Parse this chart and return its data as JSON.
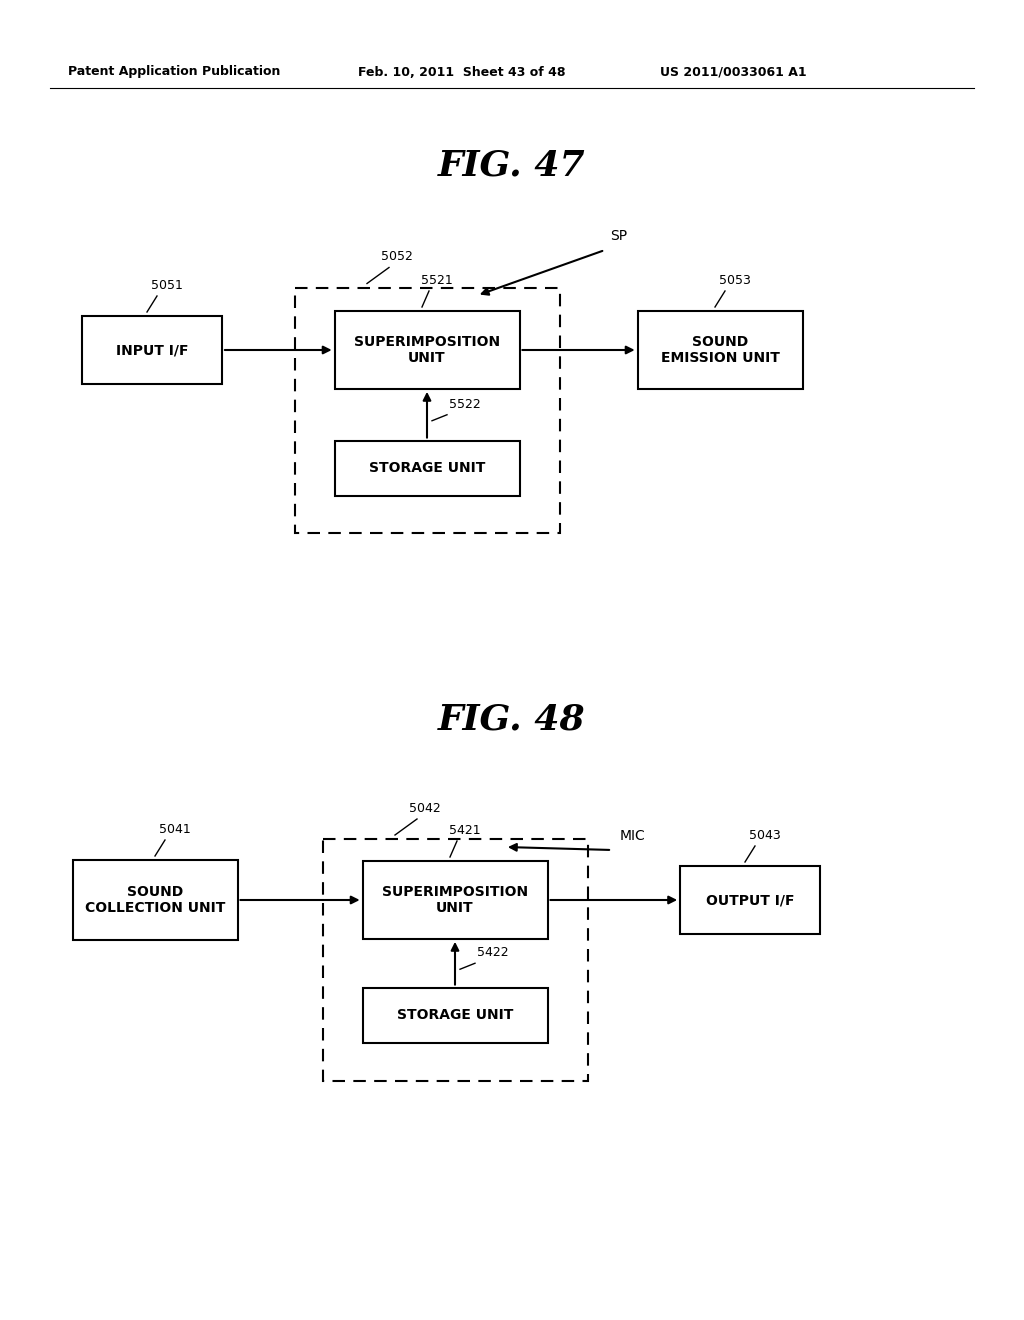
{
  "header_left": "Patent Application Publication",
  "header_mid": "Feb. 10, 2011  Sheet 43 of 48",
  "header_right": "US 2011/0033061 A1",
  "fig47_title": "FIG. 47",
  "fig48_title": "FIG. 48",
  "background": "#ffffff",
  "fig47": {
    "label_5051": "5051",
    "label_5052": "5052",
    "label_5053": "5053",
    "label_5521": "5521",
    "label_5522": "5522",
    "label_sp": "SP",
    "box_input_if": "INPUT I/F",
    "box_superimposition": "SUPERIMPOSITION\nUNIT",
    "box_sound_emission": "SOUND\nEMISSION UNIT",
    "box_storage": "STORAGE UNIT"
  },
  "fig48": {
    "label_5041": "5041",
    "label_5042": "5042",
    "label_5043": "5043",
    "label_5421": "5421",
    "label_5422": "5422",
    "label_mic": "MIC",
    "box_sound_collection": "SOUND\nCOLLECTION UNIT",
    "box_superimposition": "SUPERIMPOSITION\nUNIT",
    "box_output_if": "OUTPUT I/F",
    "box_storage": "STORAGE UNIT"
  }
}
